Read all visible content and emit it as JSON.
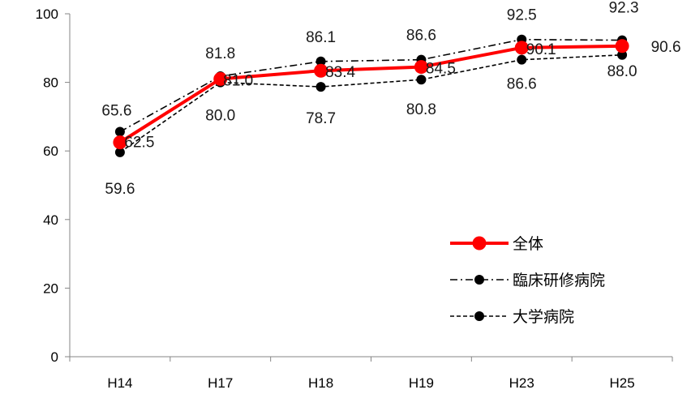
{
  "chart_data": {
    "type": "line",
    "title": "",
    "xlabel": "",
    "ylabel": "",
    "categories": [
      "H14",
      "H17",
      "H18",
      "H19",
      "H23",
      "H25"
    ],
    "ylim": [
      0,
      100
    ],
    "yticks": [
      "0",
      "20",
      "40",
      "60",
      "80",
      "100"
    ],
    "grid": false,
    "legend_position": "bottom-right",
    "series": [
      {
        "name": "全体",
        "values": [
          62.5,
          81.0,
          83.4,
          84.5,
          90.1,
          90.6
        ],
        "labels": [
          "62.5",
          "81.0",
          "83.4",
          "84.5",
          "90.1",
          "90.6"
        ],
        "color": "#ff0000",
        "style": "solid-thick"
      },
      {
        "name": "臨床研修病院",
        "values": [
          65.6,
          81.8,
          86.1,
          86.6,
          92.5,
          92.3
        ],
        "labels": [
          "65.6",
          "81.8",
          "86.1",
          "86.6",
          "92.5",
          "92.3"
        ],
        "color": "#000000",
        "style": "dash-dot"
      },
      {
        "name": "大学病院",
        "values": [
          59.6,
          80.0,
          78.7,
          80.8,
          86.6,
          88.0
        ],
        "labels": [
          "59.6",
          "80.0",
          "78.7",
          "80.8",
          "86.6",
          "88.0"
        ],
        "color": "#000000",
        "style": "dashed"
      }
    ]
  }
}
